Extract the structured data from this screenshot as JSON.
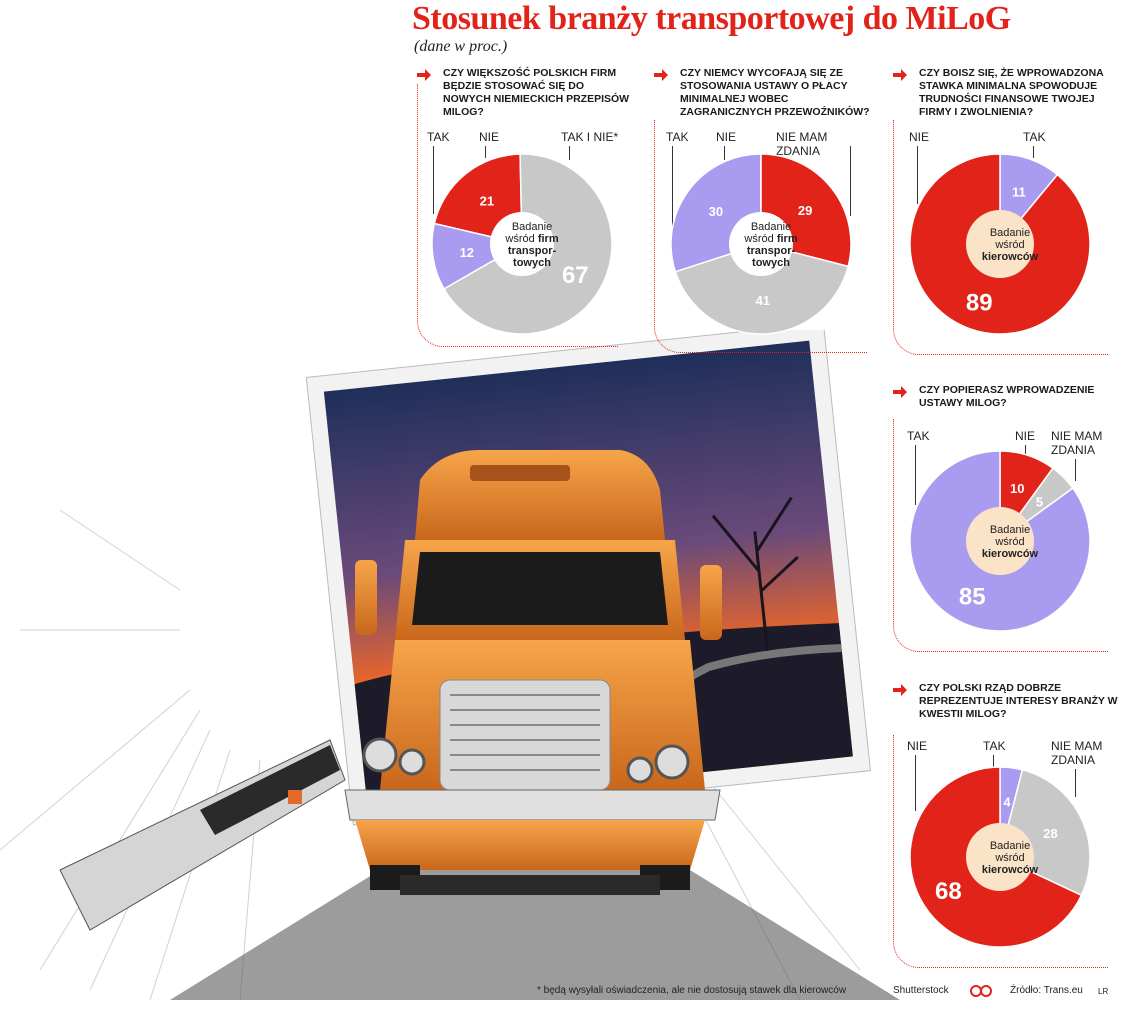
{
  "title": "Stosunek branży transportowej do MiLoG",
  "subtitle": "(dane w proc.)",
  "colors": {
    "red": "#e2231a",
    "gray": "#c8c8c8",
    "lavender": "#a99cf0",
    "peach": "#fbe3c8"
  },
  "chart_data": [
    {
      "type": "pie",
      "title": "Czy większość polskich firm będzie stosować się do nowych niemieckich przepisów MiLoG?",
      "center": [
        "Badanie",
        "wśród",
        "firm",
        "transpor-",
        "towych"
      ],
      "series": [
        {
          "name": "TAK",
          "value": 12,
          "color": "#a99cf0"
        },
        {
          "name": "NIE",
          "value": 21,
          "color": "#e2231a"
        },
        {
          "name": "TAK I NIE*",
          "value": 67,
          "color": "#c8c8c8"
        }
      ]
    },
    {
      "type": "pie",
      "title": "Czy Niemcy wycofają się ze stosowania ustawy o płacy minimalnej wobec zagranicznych przewoźników?",
      "center": [
        "Badanie",
        "wśród",
        "firm",
        "transpor-",
        "towych"
      ],
      "series": [
        {
          "name": "TAK",
          "value": 30,
          "color": "#a99cf0"
        },
        {
          "name": "NIE",
          "value": 29,
          "color": "#e2231a"
        },
        {
          "name": "NIE MAM ZDANIA",
          "value": 41,
          "color": "#c8c8c8"
        }
      ]
    },
    {
      "type": "pie",
      "title": "Czy boisz się, że wprowadzona stawka minimalna spowoduje trudności finansowe twojej firmy i zwolnienia?",
      "center": [
        "Badanie",
        "wśród",
        "kierowców"
      ],
      "series": [
        {
          "name": "TAK",
          "value": 11,
          "color": "#a99cf0"
        },
        {
          "name": "NIE",
          "value": 89,
          "color": "#e2231a"
        }
      ]
    },
    {
      "type": "pie",
      "title": "Czy popierasz wprowadzenie ustawy MiLoG?",
      "center": [
        "Badanie",
        "wśród",
        "kierowców"
      ],
      "series": [
        {
          "name": "NIE",
          "value": 10,
          "color": "#e2231a"
        },
        {
          "name": "NIE MAM ZDANIA",
          "value": 5,
          "color": "#c8c8c8"
        },
        {
          "name": "TAK",
          "value": 85,
          "color": "#a99cf0"
        }
      ]
    },
    {
      "type": "pie",
      "title": "Czy polski rząd dobrze reprezentuje interesy branży w kwestii MiLoG?",
      "center": [
        "Badanie",
        "wśród",
        "kierowców"
      ],
      "series": [
        {
          "name": "TAK",
          "value": 4,
          "color": "#a99cf0"
        },
        {
          "name": "NIE MAM ZDANIA",
          "value": 28,
          "color": "#c8c8c8"
        },
        {
          "name": "NIE",
          "value": 68,
          "color": "#e2231a"
        }
      ]
    }
  ],
  "footer": {
    "note": "* będą wysyłali oświadczenia, ale nie dostosują stawek dla kierowców",
    "photo": "Shutterstock",
    "source": "Źródło: Trans.eu",
    "initials": "LR"
  }
}
